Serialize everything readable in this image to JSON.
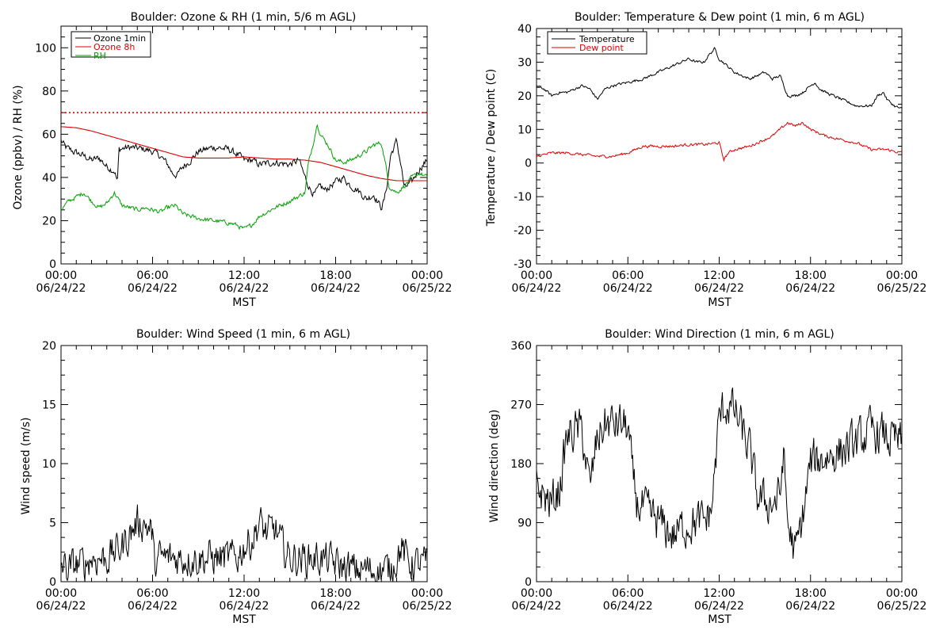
{
  "colors": {
    "black": "#000000",
    "red": "#dd0000",
    "green": "#00a000",
    "ref_line": "#ee0000"
  },
  "x_ticks": {
    "times": [
      "00:00",
      "06:00",
      "12:00",
      "18:00",
      "00:00"
    ],
    "dates": [
      "06/24/22",
      "06/24/22",
      "06/24/22",
      "06/24/22",
      "06/25/22"
    ],
    "label": "MST"
  },
  "chart_data": [
    {
      "id": "ozone",
      "type": "line",
      "title": "Boulder: Ozone & RH (1 min, 5/6 m AGL)",
      "xlabel": "MST",
      "ylabel": "Ozone (ppbv) / RH (%)",
      "xlim_hours": [
        0,
        24
      ],
      "ylim": [
        0,
        110
      ],
      "yticks": [
        0,
        20,
        40,
        60,
        80,
        100
      ],
      "hline": {
        "value": 70,
        "color": "#ee0000",
        "style": "dotted"
      },
      "legend": "top-left",
      "series": [
        {
          "name": "Ozone 1min",
          "color": "#000000",
          "noise": 1.4,
          "x": [
            0,
            0.3,
            0.8,
            1.5,
            2,
            2.5,
            3,
            3.5,
            3.7,
            3.8,
            4.5,
            5.5,
            6,
            6.5,
            7,
            7.3,
            7.6,
            8,
            8.5,
            9,
            10,
            11,
            11.7,
            12,
            12.5,
            13,
            14,
            15,
            15.6,
            16,
            16.3,
            16.6,
            17,
            17.3,
            18,
            18.5,
            19,
            19.5,
            20,
            20.5,
            21,
            21.2,
            21.4,
            21.6,
            22,
            22.3,
            22.5,
            23,
            23.5,
            24
          ],
          "y": [
            57,
            54,
            52,
            50,
            48,
            49,
            45,
            43,
            38,
            53,
            54,
            53,
            52,
            50,
            46,
            42,
            41,
            45,
            48,
            52,
            54,
            53,
            50,
            48,
            48,
            46,
            47,
            46,
            48,
            40,
            35,
            32,
            36,
            34,
            38,
            40,
            36,
            34,
            30,
            32,
            26,
            30,
            38,
            50,
            57,
            45,
            35,
            38,
            44,
            48
          ]
        },
        {
          "name": "Ozone 8h",
          "color": "#dd0000",
          "noise": 0,
          "x": [
            0,
            1,
            2,
            3,
            4,
            5,
            6,
            7,
            8,
            9,
            10,
            11,
            12,
            13,
            14,
            15,
            16,
            17,
            18,
            19,
            20,
            21,
            22,
            23,
            24
          ],
          "y": [
            63.5,
            63,
            61.5,
            59.5,
            57.5,
            55.5,
            53.5,
            51.5,
            49.5,
            49,
            49,
            49,
            49.5,
            49,
            48.5,
            48.5,
            48,
            47,
            45,
            43,
            41,
            39.5,
            38.5,
            38.5,
            38.5
          ]
        },
        {
          "name": "RH",
          "color": "#00a000",
          "noise": 0.9,
          "x": [
            0,
            0.5,
            1,
            1.5,
            2,
            2.5,
            3,
            3.5,
            4,
            4.5,
            5,
            5.5,
            6,
            6.5,
            7,
            7.5,
            8,
            9,
            10,
            11,
            11.5,
            12,
            12.5,
            13,
            14,
            15,
            15.5,
            16,
            16.2,
            16.5,
            16.8,
            17,
            17.5,
            18,
            18.5,
            19,
            19.5,
            20,
            20.5,
            21,
            21.3,
            21.5,
            22,
            22.5,
            23,
            23.5,
            24
          ],
          "y": [
            25,
            29,
            31,
            33,
            29,
            26,
            28,
            33,
            27,
            26,
            25,
            26,
            25,
            24,
            26,
            27,
            23,
            21,
            20,
            19,
            18,
            16,
            18,
            22,
            26,
            29,
            31,
            33,
            46,
            55,
            65,
            60,
            55,
            48,
            47,
            48,
            50,
            52,
            55,
            56,
            45,
            36,
            33,
            36,
            40,
            42,
            40
          ]
        }
      ],
      "legend_entries": [
        "Ozone 1min",
        "Ozone 8h",
        "RH"
      ]
    },
    {
      "id": "temp",
      "type": "line",
      "title": "Boulder: Temperature & Dew point (1 min, 6 m AGL)",
      "xlabel": "MST",
      "ylabel": "Temperature / Dew point (C)",
      "xlim_hours": [
        0,
        24
      ],
      "ylim": [
        -30,
        40
      ],
      "yticks": [
        -30,
        -20,
        -10,
        0,
        10,
        20,
        30,
        40
      ],
      "legend": "top-left",
      "series": [
        {
          "name": "Temperature",
          "color": "#000000",
          "noise": 0.35,
          "x": [
            0,
            0.5,
            1,
            1.5,
            2,
            2.5,
            3,
            3.5,
            4,
            4.5,
            5,
            6,
            7,
            8,
            9,
            10,
            10.5,
            11,
            11.3,
            11.7,
            12,
            12.5,
            13,
            13.5,
            14,
            14.5,
            15,
            15.5,
            16,
            16.5,
            17,
            17.5,
            18,
            18.3,
            18.6,
            19,
            20,
            21,
            22,
            22.4,
            22.8,
            23,
            23.5,
            24
          ],
          "y": [
            23,
            22,
            20,
            21,
            21,
            22,
            23,
            22,
            19,
            22,
            23,
            24,
            25,
            27,
            29,
            31,
            30,
            30,
            32,
            34,
            31,
            29,
            27,
            26,
            25,
            26,
            27,
            25,
            26,
            20,
            20,
            21,
            23,
            24,
            22,
            21,
            19,
            17,
            17,
            20,
            21,
            19,
            17,
            16
          ]
        },
        {
          "name": "Dew point",
          "color": "#dd0000",
          "noise": 0.35,
          "x": [
            0,
            1,
            2,
            3,
            4,
            5,
            6,
            7,
            8,
            9,
            10,
            11,
            12,
            12.3,
            12.6,
            13,
            14,
            15,
            15.5,
            16,
            16.5,
            17,
            17.5,
            18,
            18.5,
            19,
            20,
            21,
            21.5,
            22,
            23,
            24
          ],
          "y": [
            2,
            3,
            3,
            2.5,
            2,
            2,
            3,
            5,
            5,
            5,
            5.5,
            5.5,
            6,
            1,
            3,
            4,
            5,
            7,
            8,
            10,
            12,
            11,
            12,
            10,
            9,
            8,
            7,
            6,
            5,
            4,
            4,
            3
          ]
        }
      ],
      "legend_entries": [
        "Temperature",
        "Dew point"
      ]
    },
    {
      "id": "wspd",
      "type": "line",
      "title": "Boulder: Wind Speed (1 min, 6 m AGL)",
      "xlabel": "MST",
      "ylabel": "Wind speed (m/s)",
      "xlim_hours": [
        0,
        24
      ],
      "ylim": [
        0,
        20
      ],
      "yticks": [
        0,
        5,
        10,
        15,
        20
      ],
      "series": [
        {
          "name": "",
          "color": "#000000",
          "noise": 1.3,
          "x": [
            0,
            0.5,
            1,
            1.5,
            2,
            2.5,
            3,
            3.5,
            4,
            4.5,
            5,
            5.5,
            6,
            6.1,
            6.5,
            7,
            8,
            9,
            10,
            11,
            11.5,
            12,
            12.5,
            13,
            13.5,
            14,
            14.5,
            15,
            16,
            17,
            18,
            19,
            20,
            21,
            21.5,
            22,
            22.3,
            22.6,
            23,
            24
          ],
          "y": [
            1.5,
            1,
            1.5,
            1.5,
            2,
            2,
            2,
            2.5,
            3,
            4,
            5,
            5,
            4,
            1.5,
            2,
            2,
            2,
            2,
            2,
            2,
            2,
            3,
            3.5,
            5,
            4,
            4.5,
            3,
            2,
            2,
            2,
            1.5,
            1,
            1,
            1,
            1,
            2,
            3,
            2,
            1.5,
            1.5
          ]
        }
      ]
    },
    {
      "id": "wdir",
      "type": "line",
      "title": "Boulder: Wind Direction (1 min, 6 m AGL)",
      "xlabel": "MST",
      "ylabel": "Wind direction (deg)",
      "xlim_hours": [
        0,
        24
      ],
      "ylim": [
        0,
        360
      ],
      "yticks": [
        0,
        90,
        180,
        270,
        360
      ],
      "series": [
        {
          "name": "",
          "color": "#000000",
          "noise": 28,
          "x": [
            0,
            0.5,
            1,
            1.5,
            2,
            2.5,
            3,
            3.5,
            4,
            4.5,
            5,
            5.5,
            6,
            6.3,
            6.6,
            7,
            8,
            9,
            10,
            11,
            11.5,
            12,
            12.5,
            13,
            13.5,
            14,
            14.5,
            15,
            15.5,
            16,
            16.2,
            16.5,
            17,
            17.5,
            18,
            19,
            20,
            21,
            22,
            23,
            24
          ],
          "y": [
            150,
            130,
            120,
            140,
            220,
            230,
            230,
            140,
            220,
            240,
            240,
            240,
            235,
            160,
            120,
            110,
            90,
            70,
            90,
            90,
            110,
            250,
            270,
            260,
            230,
            200,
            130,
            120,
            120,
            130,
            200,
            90,
            40,
            100,
            180,
            190,
            200,
            210,
            230,
            220,
            210
          ]
        }
      ]
    }
  ]
}
